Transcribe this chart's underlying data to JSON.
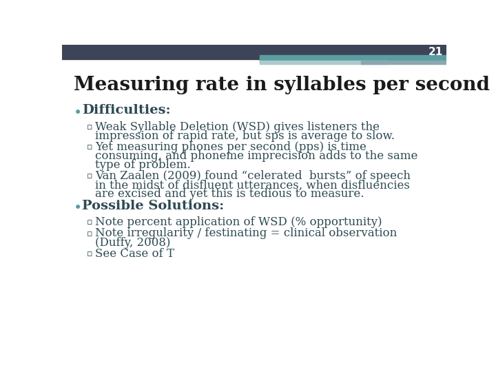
{
  "slide_number": "21",
  "title": "Measuring rate in syllables per second (sps):",
  "header_bg_color": "#3d4457",
  "header_teal_color": "#5a9ea0",
  "header_light_color": "#b0c8cc",
  "header_mid_color": "#8aa8b0",
  "title_color": "#1a1a1a",
  "bullet_color": "#5a9ea0",
  "text_color": "#2e4a52",
  "background_color": "#ffffff",
  "slide_number_color": "#ffffff",
  "content": [
    {
      "level": 1,
      "text": "Difficulties:",
      "bold": true
    },
    {
      "level": 2,
      "text": "Weak Syllable Deletion (WSD) gives listeners the\nimpression of rapid rate, but sps is average to slow."
    },
    {
      "level": 2,
      "text": "Yet measuring phones per second (pps) is time\nconsuming, and phoneme imprecision adds to the same\ntype of problem."
    },
    {
      "level": 2,
      "text": "Van Zaalen (2009) found “celerated  bursts” of speech\nin the midst of disfluent utterances, when disfluencies\nare excised and yet this is tedious to measure."
    },
    {
      "level": 1,
      "text": "Possible Solutions:",
      "bold": true
    },
    {
      "level": 2,
      "text": "Note percent application of WSD (% opportunity)"
    },
    {
      "level": 2,
      "text": "Note irregularity / festinating = clinical observation\n(Duffy, 2008)"
    },
    {
      "level": 2,
      "text": "See Case of T"
    }
  ]
}
